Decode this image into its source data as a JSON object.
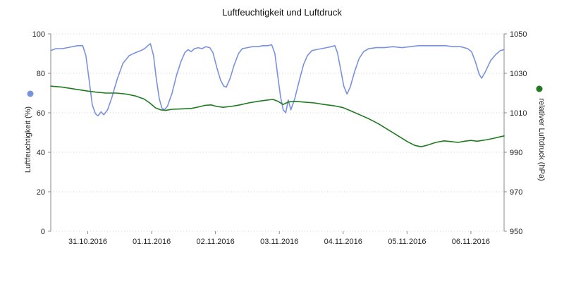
{
  "chart_data": {
    "type": "line",
    "title": "Luftfeuchtigkeit und Luftdruck",
    "grid": "horizontal-dotted",
    "legend_position": "axis-side-dots",
    "x_axis": {
      "unit": "days since 30.10.2016 00:00",
      "range": [
        0.42,
        7.52
      ],
      "ticks": [
        1,
        2,
        3,
        4,
        5,
        6,
        7
      ],
      "tick_labels": [
        "31.10.2016",
        "01.11.2016",
        "02.11.2016",
        "03.11.2016",
        "04.11.2016",
        "05.11.2016",
        "06.11.2016"
      ]
    },
    "y_axis_left": {
      "label": "Luftfeuchtigkeit (%)",
      "range": [
        0,
        100
      ],
      "ticks": [
        0,
        20,
        40,
        60,
        80,
        100
      ],
      "color": "#7a92dd"
    },
    "y_axis_right": {
      "label": "relativer Luftdruck (hPa)",
      "range": [
        950,
        1050
      ],
      "ticks": [
        950,
        970,
        990,
        1010,
        1030,
        1050
      ],
      "color": "#1f7a1f"
    },
    "series": [
      {
        "id": "humidity",
        "name": "Luftfeuchtigkeit",
        "axis": "left",
        "color": "#7a92dd",
        "points": [
          [
            0.42,
            91.5
          ],
          [
            0.5,
            92.5
          ],
          [
            0.6,
            92.5
          ],
          [
            0.68,
            93
          ],
          [
            0.76,
            93.5
          ],
          [
            0.84,
            94
          ],
          [
            0.92,
            94
          ],
          [
            0.97,
            89
          ],
          [
            1.02,
            77
          ],
          [
            1.07,
            64
          ],
          [
            1.12,
            59.5
          ],
          [
            1.16,
            58.5
          ],
          [
            1.21,
            60.5
          ],
          [
            1.25,
            59
          ],
          [
            1.31,
            61.5
          ],
          [
            1.38,
            68
          ],
          [
            1.46,
            77
          ],
          [
            1.55,
            85
          ],
          [
            1.65,
            89
          ],
          [
            1.75,
            90.5
          ],
          [
            1.83,
            91.5
          ],
          [
            1.89,
            92.5
          ],
          [
            1.94,
            94
          ],
          [
            1.98,
            95
          ],
          [
            2.03,
            89
          ],
          [
            2.07,
            78
          ],
          [
            2.12,
            67
          ],
          [
            2.16,
            62.5
          ],
          [
            2.2,
            61.5
          ],
          [
            2.25,
            63.5
          ],
          [
            2.32,
            70
          ],
          [
            2.39,
            79
          ],
          [
            2.46,
            86
          ],
          [
            2.52,
            90.5
          ],
          [
            2.57,
            92
          ],
          [
            2.62,
            91
          ],
          [
            2.67,
            92.5
          ],
          [
            2.73,
            93
          ],
          [
            2.79,
            92.5
          ],
          [
            2.85,
            93.5
          ],
          [
            2.91,
            93
          ],
          [
            2.96,
            90.5
          ],
          [
            3.02,
            83
          ],
          [
            3.08,
            76.5
          ],
          [
            3.13,
            73.5
          ],
          [
            3.17,
            73
          ],
          [
            3.23,
            77.5
          ],
          [
            3.29,
            84
          ],
          [
            3.36,
            90
          ],
          [
            3.42,
            92.5
          ],
          [
            3.5,
            93
          ],
          [
            3.58,
            93.5
          ],
          [
            3.66,
            93.5
          ],
          [
            3.74,
            94
          ],
          [
            3.82,
            94
          ],
          [
            3.88,
            94.5
          ],
          [
            3.93,
            90
          ],
          [
            3.97,
            80
          ],
          [
            4.02,
            68
          ],
          [
            4.06,
            61.5
          ],
          [
            4.1,
            60
          ],
          [
            4.14,
            66.5
          ],
          [
            4.18,
            61.5
          ],
          [
            4.24,
            67
          ],
          [
            4.31,
            76
          ],
          [
            4.38,
            84.5
          ],
          [
            4.44,
            89
          ],
          [
            4.51,
            91.5
          ],
          [
            4.58,
            92
          ],
          [
            4.66,
            92.5
          ],
          [
            4.74,
            93
          ],
          [
            4.81,
            93.5
          ],
          [
            4.87,
            94
          ],
          [
            4.91,
            90.5
          ],
          [
            4.96,
            82
          ],
          [
            5.01,
            73.5
          ],
          [
            5.06,
            69.5
          ],
          [
            5.11,
            73
          ],
          [
            5.18,
            81
          ],
          [
            5.25,
            87.5
          ],
          [
            5.32,
            91
          ],
          [
            5.4,
            92.5
          ],
          [
            5.52,
            93
          ],
          [
            5.65,
            93
          ],
          [
            5.78,
            93.5
          ],
          [
            5.92,
            93
          ],
          [
            6.05,
            93.5
          ],
          [
            6.18,
            94
          ],
          [
            6.32,
            94
          ],
          [
            6.46,
            94
          ],
          [
            6.6,
            94
          ],
          [
            6.72,
            93.5
          ],
          [
            6.84,
            93.5
          ],
          [
            6.95,
            92.5
          ],
          [
            7.01,
            91
          ],
          [
            7.07,
            86
          ],
          [
            7.13,
            79.5
          ],
          [
            7.17,
            77.5
          ],
          [
            7.23,
            81
          ],
          [
            7.31,
            86.5
          ],
          [
            7.39,
            89.5
          ],
          [
            7.46,
            91.5
          ],
          [
            7.52,
            92
          ]
        ]
      },
      {
        "id": "pressure",
        "name": "Luftdruck",
        "axis": "right",
        "color": "#1f7a1f",
        "points": [
          [
            0.42,
            1023.5
          ],
          [
            0.6,
            1023
          ],
          [
            0.8,
            1022
          ],
          [
            1.0,
            1021
          ],
          [
            1.12,
            1020.5
          ],
          [
            1.28,
            1020
          ],
          [
            1.45,
            1020
          ],
          [
            1.6,
            1019.5
          ],
          [
            1.75,
            1018.5
          ],
          [
            1.88,
            1017
          ],
          [
            1.97,
            1015
          ],
          [
            2.06,
            1012.5
          ],
          [
            2.14,
            1011.5
          ],
          [
            2.22,
            1011.2
          ],
          [
            2.32,
            1011.8
          ],
          [
            2.48,
            1012
          ],
          [
            2.62,
            1012.2
          ],
          [
            2.74,
            1013
          ],
          [
            2.84,
            1013.8
          ],
          [
            2.93,
            1014
          ],
          [
            3.02,
            1013.2
          ],
          [
            3.12,
            1012.8
          ],
          [
            3.24,
            1013.2
          ],
          [
            3.38,
            1014
          ],
          [
            3.52,
            1015
          ],
          [
            3.66,
            1015.8
          ],
          [
            3.8,
            1016.4
          ],
          [
            3.9,
            1016.8
          ],
          [
            3.98,
            1015.8
          ],
          [
            4.06,
            1014.2
          ],
          [
            4.14,
            1015.5
          ],
          [
            4.26,
            1015.8
          ],
          [
            4.4,
            1015.4
          ],
          [
            4.55,
            1015
          ],
          [
            4.7,
            1014.2
          ],
          [
            4.85,
            1013.6
          ],
          [
            5.0,
            1012.6
          ],
          [
            5.12,
            1011
          ],
          [
            5.26,
            1009
          ],
          [
            5.4,
            1007
          ],
          [
            5.55,
            1004.5
          ],
          [
            5.7,
            1001.5
          ],
          [
            5.85,
            998.5
          ],
          [
            6.0,
            995.5
          ],
          [
            6.12,
            993.5
          ],
          [
            6.22,
            992.8
          ],
          [
            6.32,
            993.6
          ],
          [
            6.45,
            995
          ],
          [
            6.58,
            995.8
          ],
          [
            6.7,
            995.4
          ],
          [
            6.8,
            995
          ],
          [
            6.9,
            995.6
          ],
          [
            7.0,
            996
          ],
          [
            7.1,
            995.6
          ],
          [
            7.22,
            996.2
          ],
          [
            7.35,
            997
          ],
          [
            7.45,
            997.8
          ],
          [
            7.52,
            998.3
          ]
        ]
      }
    ]
  }
}
